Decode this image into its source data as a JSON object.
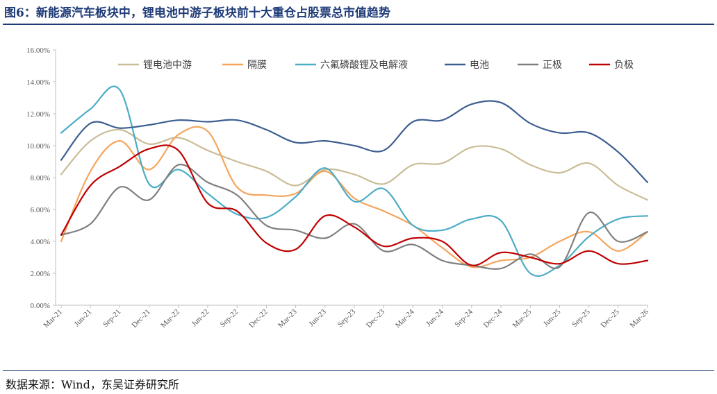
{
  "header": {
    "title": "图6：新能源汽车板块中，锂电池中游子板块前十大重仓占股票总市值趋势"
  },
  "footer": {
    "source": "数据来源：Wind，东吴证券研究所"
  },
  "chart_data": {
    "type": "line",
    "title": "",
    "xlabel": "",
    "ylabel": "",
    "ylim": [
      0,
      16
    ],
    "y_ticks": [
      "0.00%",
      "2.00%",
      "4.00%",
      "6.00%",
      "8.00%",
      "10.00%",
      "12.00%",
      "14.00%",
      "16.00%"
    ],
    "categories": [
      "Mar-21",
      "Jun-21",
      "Sep-21",
      "Dec-21",
      "Mar-22",
      "Jun-22",
      "Sep-22",
      "Dec-22",
      "Mar-23",
      "Jun-23",
      "Sep-23",
      "Dec-23",
      "Mar-24",
      "Jun-24",
      "Sep-24",
      "Dec-24",
      "Mar-25",
      "Jun-25",
      "Sep-25",
      "Dec-25",
      "Mar-26"
    ],
    "legend_position": "top",
    "series": [
      {
        "name": "锂电池中游",
        "color": "#c9bc96",
        "values": [
          8.2,
          10.3,
          11.0,
          10.1,
          10.5,
          9.7,
          9.0,
          8.4,
          7.5,
          8.5,
          8.2,
          7.6,
          8.8,
          8.9,
          9.9,
          9.8,
          8.8,
          8.3,
          8.9,
          7.5,
          6.6
        ]
      },
      {
        "name": "隔膜",
        "color": "#f5a55b",
        "values": [
          4.0,
          8.4,
          10.3,
          8.5,
          10.7,
          10.9,
          7.4,
          6.9,
          7.0,
          8.4,
          6.7,
          5.9,
          5.0,
          3.6,
          2.4,
          2.8,
          3.0,
          4.0,
          4.6,
          3.4,
          4.6
        ]
      },
      {
        "name": "六氟磷酸锂及电解液",
        "color": "#4bacc6",
        "values": [
          10.8,
          12.3,
          13.5,
          7.6,
          8.5,
          7.0,
          5.7,
          5.5,
          6.8,
          8.6,
          6.5,
          7.3,
          5.0,
          4.7,
          5.4,
          5.3,
          2.0,
          2.5,
          4.3,
          5.4,
          5.6
        ]
      },
      {
        "name": "电池",
        "color": "#3d5e91",
        "values": [
          9.1,
          11.4,
          11.1,
          11.3,
          11.6,
          11.5,
          11.6,
          11.0,
          10.2,
          10.3,
          10.0,
          9.7,
          11.5,
          11.6,
          12.6,
          12.7,
          11.4,
          10.8,
          10.8,
          9.6,
          7.7
        ]
      },
      {
        "name": "正极",
        "color": "#7f7f7f",
        "values": [
          4.4,
          5.1,
          7.4,
          6.6,
          8.8,
          7.7,
          6.9,
          5.0,
          4.7,
          4.2,
          5.1,
          3.4,
          3.8,
          2.8,
          2.5,
          2.3,
          3.2,
          2.4,
          5.8,
          4.0,
          4.6
        ]
      },
      {
        "name": "负极",
        "color": "#c00000",
        "values": [
          4.4,
          7.5,
          8.7,
          9.8,
          9.7,
          6.4,
          5.9,
          3.9,
          3.5,
          5.6,
          4.9,
          3.7,
          4.2,
          4.0,
          2.5,
          3.3,
          3.0,
          2.6,
          3.4,
          2.6,
          2.8
        ]
      }
    ]
  }
}
